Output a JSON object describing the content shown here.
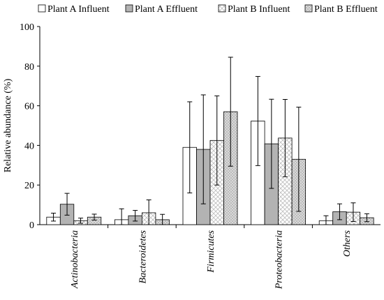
{
  "chart_data": {
    "type": "bar",
    "categories": [
      "Actinobacteria",
      "Bacteroidetes",
      "Firmicutes",
      "Proteobacteria",
      "Others"
    ],
    "series": [
      {
        "name": "Plant A Influent",
        "pattern": "plain",
        "fill": "#ffffff",
        "values": [
          3.8,
          2.5,
          39.0,
          52.3,
          2.0
        ],
        "error": [
          2.0,
          5.5,
          23.0,
          22.5,
          2.5
        ]
      },
      {
        "name": "Plant A Effluent",
        "pattern": "solid",
        "fill": "#b3b3b3",
        "values": [
          10.3,
          4.5,
          38.0,
          40.8,
          6.5
        ],
        "error": [
          5.5,
          2.7,
          27.5,
          22.5,
          4.0
        ]
      },
      {
        "name": "Plant B Influent",
        "pattern": "crosshatch",
        "fill": "#ffffff",
        "values": [
          2.0,
          6.0,
          42.5,
          43.7,
          6.3
        ],
        "error": [
          1.3,
          6.5,
          22.5,
          19.5,
          4.7
        ]
      },
      {
        "name": "Plant B Effluent",
        "pattern": "dotted",
        "fill": "#d9d9d9",
        "values": [
          3.8,
          2.5,
          57.0,
          33.0,
          3.5
        ],
        "error": [
          1.5,
          2.7,
          27.5,
          26.3,
          2.0
        ]
      }
    ],
    "ylabel": "Relative  abundance  (%)",
    "xlabel": "",
    "ylim": [
      0,
      100
    ],
    "yticks": [
      0,
      20,
      40,
      60,
      80,
      100
    ],
    "grid": false,
    "legend_position": "top"
  }
}
